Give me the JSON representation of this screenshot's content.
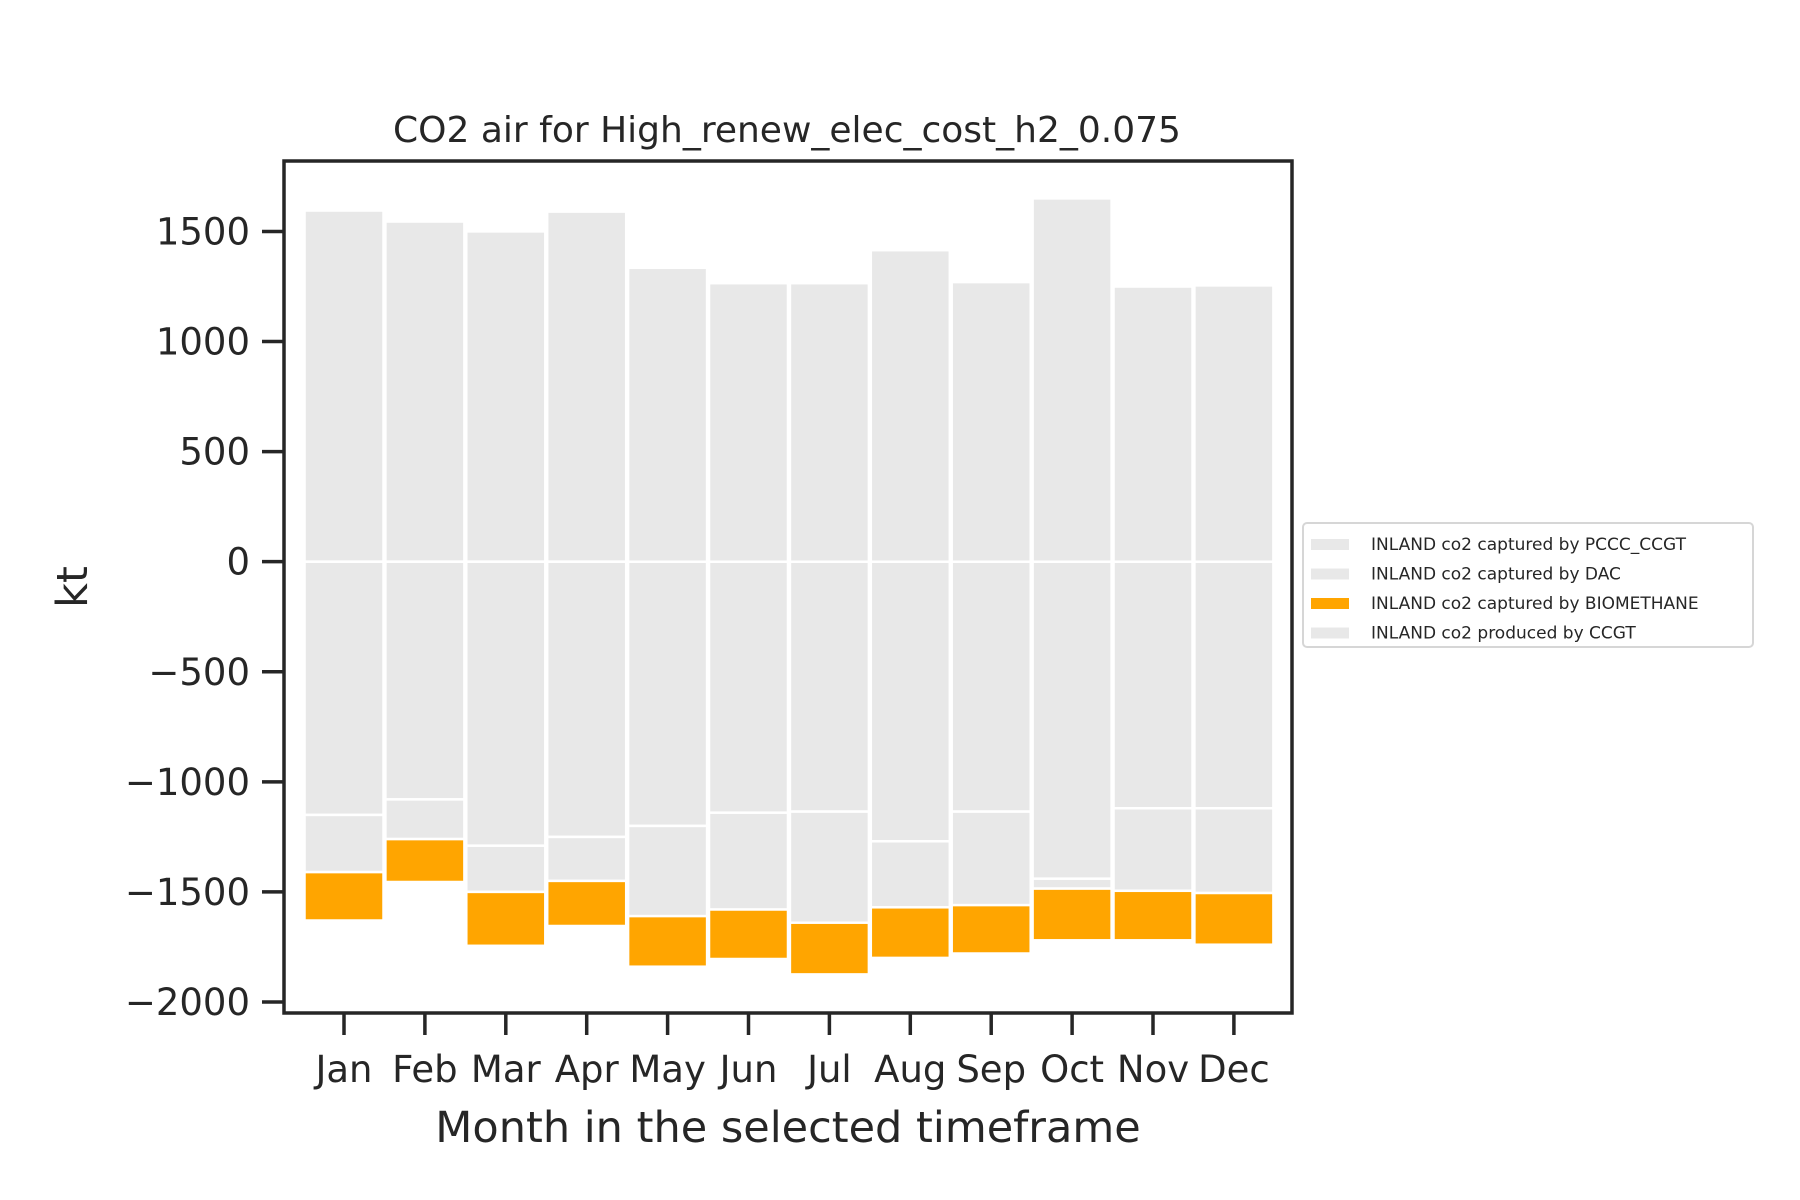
{
  "chart_data": {
    "type": "bar",
    "stacked": true,
    "title": "CO2 air for High_renew_elec_cost_h2_0.075",
    "xlabel": "Month in the selected timeframe",
    "ylabel": "kt",
    "categories": [
      "Jan",
      "Feb",
      "Mar",
      "Apr",
      "May",
      "Jun",
      "Jul",
      "Aug",
      "Sep",
      "Oct",
      "Nov",
      "Dec"
    ],
    "ylim": [
      -2050,
      1820
    ],
    "yticks": [
      1500,
      1000,
      500,
      0,
      -500,
      -1000,
      -1500,
      -2000
    ],
    "ytick_labels": [
      "1500",
      "1000",
      "500",
      "0",
      "−500",
      "−1000",
      "−1500",
      "−2000"
    ],
    "grid": false,
    "legend_position": "center-right-outside",
    "series": [
      {
        "name": "INLAND co2 captured by PCCC_CCGT",
        "color": "#e8e8e8",
        "values": [
          -1150,
          -1080,
          -1290,
          -1250,
          -1200,
          -1140,
          -1135,
          -1270,
          -1135,
          -1440,
          -1120,
          -1120
        ]
      },
      {
        "name": "INLAND co2 captured by DAC",
        "color": "#e8e8e8",
        "values": [
          -260,
          -180,
          -210,
          -200,
          -410,
          -440,
          -505,
          -300,
          -425,
          -45,
          -375,
          -385
        ]
      },
      {
        "name": "INLAND co2 captured by BIOMETHANE",
        "color": "#ffa500",
        "values": [
          -220,
          -195,
          -245,
          -205,
          -230,
          -225,
          -235,
          -230,
          -220,
          -235,
          -225,
          -235
        ]
      },
      {
        "name": "INLAND co2 produced by CCGT",
        "color": "#e8e8e8",
        "values": [
          1595,
          1545,
          1500,
          1590,
          1335,
          1265,
          1265,
          1415,
          1270,
          1650,
          1250,
          1255
        ]
      }
    ]
  }
}
